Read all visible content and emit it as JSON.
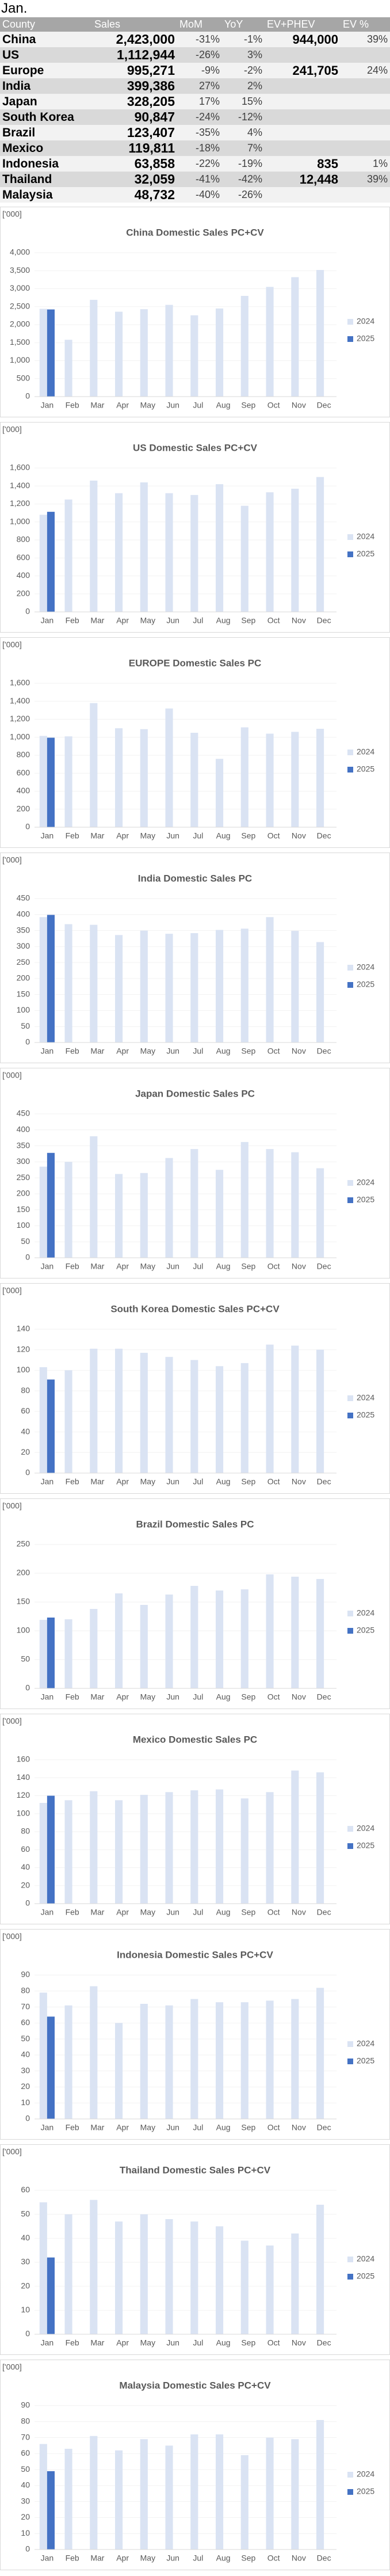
{
  "heading": "Jan.",
  "table": {
    "header": [
      "County",
      "Sales",
      "MoM",
      "YoY",
      "EV+PHEV",
      "EV %"
    ],
    "rows": [
      {
        "country": "China",
        "sales": "2,423,000",
        "mom": "-31%",
        "yoy": "-1%",
        "ev": "944,000",
        "ev_pct": "39%"
      },
      {
        "country": "US",
        "sales": "1,112,944",
        "mom": "-26%",
        "yoy": "3%"
      },
      {
        "country": "Europe",
        "sales": "995,271",
        "mom": "-9%",
        "yoy": "-2%",
        "ev": "241,705",
        "ev_pct": "24%"
      },
      {
        "country": "India",
        "sales": "399,386",
        "mom": "27%",
        "yoy": "2%"
      },
      {
        "country": "Japan",
        "sales": "328,205",
        "mom": "17%",
        "yoy": "15%"
      },
      {
        "country": "South Korea",
        "sales": "90,847",
        "mom": "-24%",
        "yoy": "-12%"
      },
      {
        "country": "Brazil",
        "sales": "123,407",
        "mom": "-35%",
        "yoy": "4%"
      },
      {
        "country": "Mexico",
        "sales": "119,811",
        "mom": "-18%",
        "yoy": "7%"
      },
      {
        "country": "Indonesia",
        "sales": "63,858",
        "mom": "-22%",
        "yoy": "-19%",
        "ev": "835",
        "ev_pct": "1%"
      },
      {
        "country": "Thailand",
        "sales": "32,059",
        "mom": "-41%",
        "yoy": "-42%",
        "ev": "12,448",
        "ev_pct": "39%"
      },
      {
        "country": "Malaysia",
        "sales": "48,732",
        "mom": "-40%",
        "yoy": "-26%"
      }
    ]
  },
  "chart_data": [
    {
      "type": "bar",
      "title": "China Domestic Sales PC+CV",
      "y_label": "['000]",
      "categories": [
        "Jan",
        "Feb",
        "Mar",
        "Apr",
        "May",
        "Jun",
        "Jul",
        "Aug",
        "Sep",
        "Oct",
        "Nov",
        "Dec"
      ],
      "series": [
        {
          "name": "2024",
          "color": "#dae3f3",
          "values": [
            2440,
            1580,
            2690,
            2360,
            2430,
            2550,
            2260,
            2450,
            2800,
            3050,
            3320,
            3520
          ]
        },
        {
          "name": "2025",
          "color": "#4472c4",
          "values": [
            2423,
            null,
            null,
            null,
            null,
            null,
            null,
            null,
            null,
            null,
            null,
            null
          ]
        }
      ],
      "ylim": [
        0,
        4000
      ],
      "yticks": [
        0,
        500,
        {
          "value": 1000,
          "label": "1,000"
        },
        {
          "value": 1500,
          "label": "1,500"
        },
        {
          "value": 2000,
          "label": "2,000"
        },
        {
          "value": 2500,
          "label": "2,500"
        },
        {
          "value": 3000,
          "label": "3,000"
        },
        {
          "value": 3500,
          "label": "3,500"
        },
        {
          "value": 4000,
          "label": "4,000"
        }
      ],
      "grid": true,
      "legend": "right"
    },
    {
      "type": "bar",
      "title": "US Domestic Sales PC+CV",
      "y_label": "['000]",
      "categories": [
        "Jan",
        "Feb",
        "Mar",
        "Apr",
        "May",
        "Jun",
        "Jul",
        "Aug",
        "Sep",
        "Oct",
        "Nov",
        "Dec"
      ],
      "series": [
        {
          "name": "2024",
          "color": "#dae3f3",
          "values": [
            1080,
            1250,
            1460,
            1320,
            1440,
            1320,
            1300,
            1420,
            1180,
            1330,
            1370,
            1500
          ]
        },
        {
          "name": "2025",
          "color": "#4472c4",
          "values": [
            1113,
            null,
            null,
            null,
            null,
            null,
            null,
            null,
            null,
            null,
            null,
            null
          ]
        }
      ],
      "ylim": [
        0,
        1600
      ],
      "yticks": [
        0,
        200,
        400,
        600,
        800,
        {
          "value": 1000,
          "label": "1,000"
        },
        {
          "value": 1200,
          "label": "1,200"
        },
        {
          "value": 1400,
          "label": "1,400"
        },
        {
          "value": 1600,
          "label": "1,600"
        }
      ],
      "grid": true,
      "legend": "right"
    },
    {
      "type": "bar",
      "title": "EUROPE Domestic Sales PC",
      "y_label": "['000]",
      "categories": [
        "Jan",
        "Feb",
        "Mar",
        "Apr",
        "May",
        "Jun",
        "Jul",
        "Aug",
        "Sep",
        "Oct",
        "Nov",
        "Dec"
      ],
      "series": [
        {
          "name": "2024",
          "color": "#dae3f3",
          "values": [
            1015,
            1010,
            1380,
            1100,
            1090,
            1320,
            1050,
            760,
            1110,
            1040,
            1060,
            1094
          ]
        },
        {
          "name": "2025",
          "color": "#4472c4",
          "values": [
            995,
            null,
            null,
            null,
            null,
            null,
            null,
            null,
            null,
            null,
            null,
            null
          ]
        }
      ],
      "ylim": [
        0,
        1600
      ],
      "yticks": [
        0,
        200,
        400,
        600,
        800,
        {
          "value": 1000,
          "label": "1,000"
        },
        {
          "value": 1200,
          "label": "1,200"
        },
        {
          "value": 1400,
          "label": "1,400"
        },
        {
          "value": 1600,
          "label": "1,600"
        }
      ],
      "grid": true,
      "legend": "right"
    },
    {
      "type": "bar",
      "title": "India Domestic Sales PC",
      "y_label": "['000]",
      "categories": [
        "Jan",
        "Feb",
        "Mar",
        "Apr",
        "May",
        "Jun",
        "Jul",
        "Aug",
        "Sep",
        "Oct",
        "Nov",
        "Dec"
      ],
      "series": [
        {
          "name": "2024",
          "color": "#dae3f3",
          "values": [
            392,
            370,
            368,
            336,
            350,
            340,
            342,
            352,
            356,
            392,
            349,
            314
          ]
        },
        {
          "name": "2025",
          "color": "#4472c4",
          "values": [
            399,
            null,
            null,
            null,
            null,
            null,
            null,
            null,
            null,
            null,
            null,
            null
          ]
        }
      ],
      "ylim": [
        0,
        450
      ],
      "yticks": [
        0,
        50,
        100,
        150,
        200,
        250,
        300,
        350,
        400,
        450
      ],
      "grid": true,
      "legend": "right"
    },
    {
      "type": "bar",
      "title": "Japan Domestic Sales PC",
      "y_label": "['000]",
      "categories": [
        "Jan",
        "Feb",
        "Mar",
        "Apr",
        "May",
        "Jun",
        "Jul",
        "Aug",
        "Sep",
        "Oct",
        "Nov",
        "Dec"
      ],
      "series": [
        {
          "name": "2024",
          "color": "#dae3f3",
          "values": [
            285,
            300,
            380,
            262,
            265,
            312,
            340,
            275,
            362,
            340,
            330,
            280
          ]
        },
        {
          "name": "2025",
          "color": "#4472c4",
          "values": [
            328,
            null,
            null,
            null,
            null,
            null,
            null,
            null,
            null,
            null,
            null,
            null
          ]
        }
      ],
      "ylim": [
        0,
        450
      ],
      "yticks": [
        0,
        50,
        100,
        150,
        200,
        250,
        300,
        350,
        400,
        450
      ],
      "grid": true,
      "legend": "right"
    },
    {
      "type": "bar",
      "title": "South Korea Domestic Sales PC+CV",
      "y_label": "['000]",
      "categories": [
        "Jan",
        "Feb",
        "Mar",
        "Apr",
        "May",
        "Jun",
        "Jul",
        "Aug",
        "Sep",
        "Oct",
        "Nov",
        "Dec"
      ],
      "series": [
        {
          "name": "2024",
          "color": "#dae3f3",
          "values": [
            103,
            100,
            121,
            121,
            117,
            113,
            110,
            104,
            107,
            125,
            124,
            120
          ]
        },
        {
          "name": "2025",
          "color": "#4472c4",
          "values": [
            91,
            null,
            null,
            null,
            null,
            null,
            null,
            null,
            null,
            null,
            null,
            null
          ]
        }
      ],
      "ylim": [
        0,
        140
      ],
      "yticks": [
        0,
        20,
        40,
        60,
        80,
        100,
        120,
        140
      ],
      "grid": true,
      "legend": "right"
    },
    {
      "type": "bar",
      "title": "Brazil Domestic Sales PC",
      "y_label": "['000]",
      "categories": [
        "Jan",
        "Feb",
        "Mar",
        "Apr",
        "May",
        "Jun",
        "Jul",
        "Aug",
        "Sep",
        "Oct",
        "Nov",
        "Dec"
      ],
      "series": [
        {
          "name": "2024",
          "color": "#dae3f3",
          "values": [
            119,
            120,
            138,
            165,
            145,
            163,
            178,
            170,
            172,
            198,
            194,
            190
          ]
        },
        {
          "name": "2025",
          "color": "#4472c4",
          "values": [
            123,
            null,
            null,
            null,
            null,
            null,
            null,
            null,
            null,
            null,
            null,
            null
          ]
        }
      ],
      "ylim": [
        0,
        250
      ],
      "yticks": [
        0,
        50,
        100,
        150,
        200,
        250
      ],
      "grid": true,
      "legend": "right"
    },
    {
      "type": "bar",
      "title": "Mexico Domestic Sales PC",
      "y_label": "['000]",
      "categories": [
        "Jan",
        "Feb",
        "Mar",
        "Apr",
        "May",
        "Jun",
        "Jul",
        "Aug",
        "Sep",
        "Oct",
        "Nov",
        "Dec"
      ],
      "series": [
        {
          "name": "2024",
          "color": "#dae3f3",
          "values": [
            112,
            115,
            125,
            115,
            121,
            124,
            126,
            127,
            117,
            124,
            148,
            146
          ]
        },
        {
          "name": "2025",
          "color": "#4472c4",
          "values": [
            120,
            null,
            null,
            null,
            null,
            null,
            null,
            null,
            null,
            null,
            null,
            null
          ]
        }
      ],
      "ylim": [
        0,
        160
      ],
      "yticks": [
        0,
        20,
        40,
        60,
        80,
        100,
        120,
        140,
        160
      ],
      "grid": true,
      "legend": "right"
    },
    {
      "type": "bar",
      "title": "Indonesia Domestic Sales PC+CV",
      "y_label": "['000]",
      "categories": [
        "Jan",
        "Feb",
        "Mar",
        "Apr",
        "May",
        "Jun",
        "Jul",
        "Aug",
        "Sep",
        "Oct",
        "Nov",
        "Dec"
      ],
      "series": [
        {
          "name": "2024",
          "color": "#dae3f3",
          "values": [
            79,
            71,
            83,
            60,
            72,
            71,
            75,
            73,
            73,
            74,
            75,
            82
          ]
        },
        {
          "name": "2025",
          "color": "#4472c4",
          "values": [
            64,
            null,
            null,
            null,
            null,
            null,
            null,
            null,
            null,
            null,
            null,
            null
          ]
        }
      ],
      "ylim": [
        0,
        90
      ],
      "yticks": [
        0,
        10,
        20,
        30,
        40,
        50,
        60,
        70,
        80,
        90
      ],
      "grid": true,
      "legend": "right"
    },
    {
      "type": "bar",
      "title": "Thailand Domestic Sales PC+CV",
      "y_label": "['000]",
      "categories": [
        "Jan",
        "Feb",
        "Mar",
        "Apr",
        "May",
        "Jun",
        "Jul",
        "Aug",
        "Sep",
        "Oct",
        "Nov",
        "Dec"
      ],
      "series": [
        {
          "name": "2024",
          "color": "#dae3f3",
          "values": [
            55,
            50,
            56,
            47,
            50,
            48,
            47,
            45,
            39,
            37,
            42,
            54
          ]
        },
        {
          "name": "2025",
          "color": "#4472c4",
          "values": [
            32,
            null,
            null,
            null,
            null,
            null,
            null,
            null,
            null,
            null,
            null,
            null
          ]
        }
      ],
      "ylim": [
        0,
        60
      ],
      "yticks": [
        0,
        10,
        20,
        30,
        40,
        50,
        60
      ],
      "grid": true,
      "legend": "right"
    },
    {
      "type": "bar",
      "title": "Malaysia Domestic Sales PC+CV",
      "y_label": "['000]",
      "categories": [
        "Jan",
        "Feb",
        "Mar",
        "Apr",
        "May",
        "Jun",
        "Jul",
        "Aug",
        "Sep",
        "Oct",
        "Nov",
        "Dec"
      ],
      "series": [
        {
          "name": "2024",
          "color": "#dae3f3",
          "values": [
            66,
            63,
            71,
            62,
            69,
            65,
            72,
            72,
            59,
            70,
            69,
            81
          ]
        },
        {
          "name": "2025",
          "color": "#4472c4",
          "values": [
            49,
            null,
            null,
            null,
            null,
            null,
            null,
            null,
            null,
            null,
            null,
            null
          ]
        }
      ],
      "ylim": [
        0,
        90
      ],
      "yticks": [
        0,
        10,
        20,
        30,
        40,
        50,
        60,
        70,
        80,
        90
      ],
      "grid": true,
      "legend": "right"
    }
  ]
}
